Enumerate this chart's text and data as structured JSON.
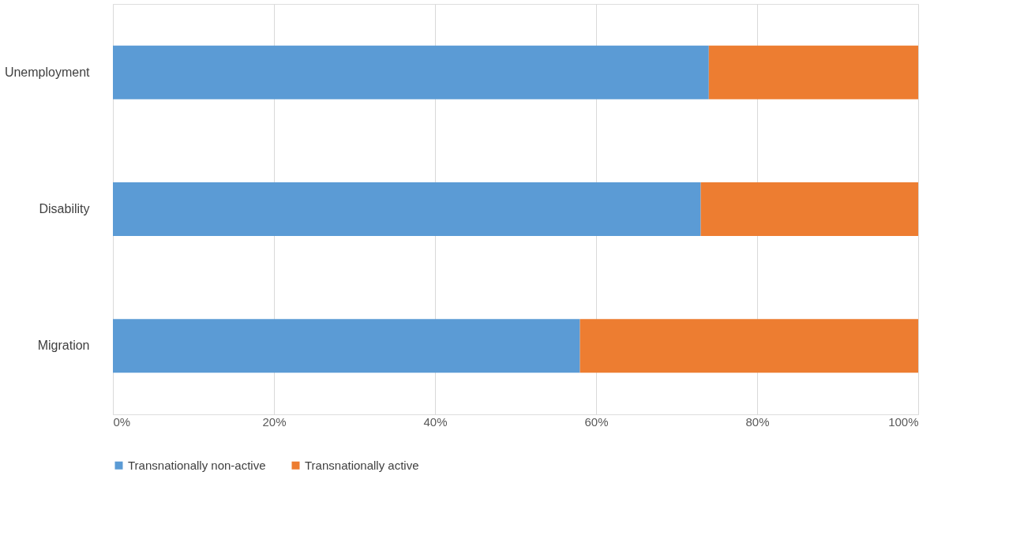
{
  "chart_data": {
    "type": "bar",
    "orientation": "horizontal",
    "stacked": true,
    "categories": [
      "Unemployment",
      "Disability",
      "Migration"
    ],
    "series": [
      {
        "name": "Transnationally non-active",
        "color": "#5b9bd5",
        "values": [
          74,
          73,
          58
        ]
      },
      {
        "name": "Transnationally active",
        "color": "#ed7d31",
        "values": [
          26,
          27,
          42
        ]
      }
    ],
    "xlim": [
      0,
      100
    ],
    "xticks": [
      {
        "value": 0,
        "label": "0%"
      },
      {
        "value": 20,
        "label": "20%"
      },
      {
        "value": 40,
        "label": "40%"
      },
      {
        "value": 60,
        "label": "60%"
      },
      {
        "value": 80,
        "label": "80%"
      },
      {
        "value": 100,
        "label": "100%"
      }
    ],
    "grid": "x",
    "legend": "bottom"
  }
}
